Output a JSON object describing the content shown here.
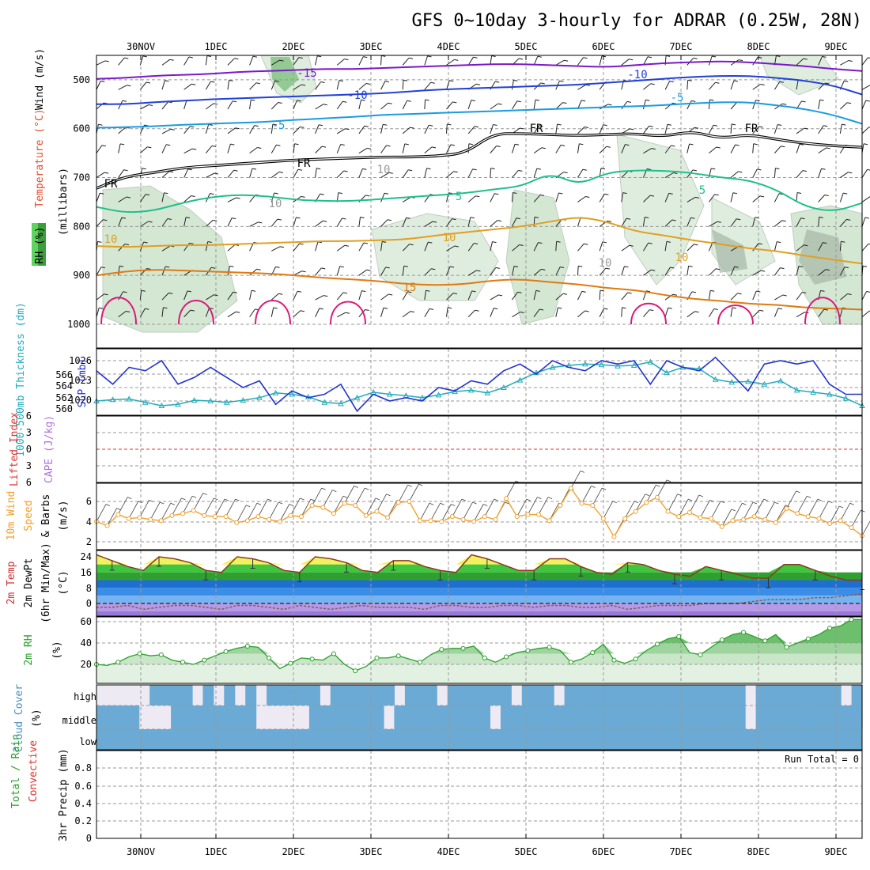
{
  "title": "GFS 0~10day 3-hourly for ADRAR (0.25W, 28N)",
  "colors": {
    "temp_m15": "#7b18c8",
    "temp_m10": "#2140d8",
    "temp_m5": "#1a9be0",
    "freezing": "#000000",
    "temp_5": "#1fbf8c",
    "temp_10": "#e0a020",
    "temp_15": "#e07a10",
    "temp_20": "#d81b7a",
    "slp": "#2233cc",
    "thickness": "#22aabb",
    "wind10m": "#f0a030",
    "temp2m_fill": "#3fc53f",
    "temp2m_warm": "#f0f060",
    "temp2m_line": "#8b3a1a",
    "dew_line": "#8a5a5a",
    "rh_line": "#2aa02a",
    "cloud": "#6aaad4",
    "cloud_clear": "#eeeaf4",
    "rh_panel_fill": "#c9e6c9"
  },
  "chart_data": [
    {
      "type": "contour",
      "panel": "upper_air",
      "xlabel": "",
      "ylabel_parts": [
        "RH (%)",
        "Temperature (°C)",
        "Wind (m/s)"
      ],
      "ylabel2": "(millibars)",
      "x_categories": [
        "30NOV",
        "1DEC",
        "2DEC",
        "3DEC",
        "4DEC",
        "5DEC",
        "6DEC",
        "7DEC",
        "8DEC",
        "9DEC"
      ],
      "ylim": [
        1000,
        450
      ],
      "yticks": [
        500,
        600,
        700,
        800,
        900,
        1000
      ],
      "contour_labels": [
        "-15",
        "-10",
        "-5",
        "-10",
        "-5",
        "FR",
        "FR",
        "FR",
        "FR",
        "5",
        "5",
        "10",
        "10",
        "10",
        "15",
        "10",
        "10",
        "10"
      ],
      "isotherms": [
        {
          "name": "-15",
          "levels": [
            498,
            496,
            492,
            490,
            488,
            484,
            482,
            480,
            478,
            478,
            476,
            474,
            472,
            470,
            468,
            468,
            470,
            472,
            474,
            470,
            466,
            464,
            462,
            464,
            468,
            472,
            478,
            482
          ]
        },
        {
          "name": "-10",
          "levels": [
            550,
            550,
            546,
            543,
            540,
            538,
            536,
            534,
            532,
            530,
            528,
            524,
            520,
            518,
            516,
            514,
            512,
            510,
            506,
            502,
            498,
            494,
            492,
            492,
            496,
            502,
            512,
            530
          ]
        },
        {
          "name": "-5",
          "levels": [
            598,
            597,
            595,
            592,
            590,
            588,
            586,
            582,
            579,
            576,
            572,
            570,
            568,
            566,
            564,
            562,
            560,
            558,
            556,
            554,
            552,
            548,
            546,
            546,
            552,
            560,
            572,
            590
          ]
        },
        {
          "name": "FR",
          "levels": [
            722,
            698,
            690,
            680,
            676,
            672,
            668,
            664,
            662,
            660,
            658,
            658,
            656,
            650,
            610,
            610,
            612,
            614,
            612,
            610,
            616,
            605,
            620,
            612,
            622,
            630,
            635,
            638
          ]
        },
        {
          "name": "5",
          "levels": [
            760,
            772,
            768,
            752,
            740,
            735,
            738,
            745,
            748,
            748,
            744,
            740,
            736,
            732,
            724,
            718,
            690,
            715,
            690,
            685,
            686,
            690,
            700,
            705,
            725,
            760,
            770,
            752
          ]
        },
        {
          "name": "10",
          "levels": [
            840,
            842,
            840,
            838,
            838,
            836,
            834,
            832,
            830,
            830,
            828,
            826,
            818,
            812,
            806,
            800,
            790,
            780,
            790,
            810,
            818,
            828,
            836,
            845,
            850,
            860,
            868,
            876
          ]
        },
        {
          "name": "15",
          "levels": [
            900,
            892,
            888,
            890,
            892,
            894,
            896,
            900,
            905,
            908,
            912,
            918,
            920,
            918,
            910,
            908,
            914,
            918,
            926,
            930,
            940,
            948,
            952,
            958,
            960,
            966,
            968,
            970
          ]
        }
      ],
      "rh_shading": "green shades (light to dark with increasing RH)"
    },
    {
      "type": "line",
      "panel": "slp_thickness",
      "ylabel_left": "1000-500mb Thickness (dm)",
      "ylabel_right": "SLP (mb)",
      "yticks_thickness": [
        "566",
        "564",
        "562",
        "560"
      ],
      "yticks_slp": [
        "1026",
        "1023",
        "1020"
      ],
      "series": [
        {
          "name": "SLP",
          "values": [
            1024.5,
            1022.5,
            1025.0,
            1024.5,
            1026.0,
            1022.5,
            1023.5,
            1025.0,
            1023.5,
            1022.0,
            1023.0,
            1019.5,
            1021.5,
            1020.5,
            1021.0,
            1022.5,
            1018.5,
            1021.0,
            1020.0,
            1020.5,
            1020.0,
            1022.0,
            1021.5,
            1023.0,
            1022.5,
            1024.5,
            1025.5,
            1024.0,
            1026.0,
            1025.0,
            1024.5,
            1026.0,
            1025.5,
            1026.0,
            1022.5,
            1026.0,
            1025.0,
            1024.5,
            1026.5,
            1024.0,
            1021.5,
            1025.5,
            1026.0,
            1025.5,
            1026.0,
            1022.5,
            1021.0,
            1021.0
          ]
        },
        {
          "name": "Thickness",
          "values": [
            560.0,
            560.2,
            560.3,
            559.8,
            559.3,
            559.5,
            560.1,
            560.0,
            559.8,
            560.1,
            560.5,
            561.2,
            561.0,
            560.6,
            559.8,
            559.6,
            560.5,
            561.3,
            561.0,
            560.8,
            560.5,
            560.9,
            561.4,
            561.6,
            561.2,
            562.0,
            563.1,
            564.2,
            565.0,
            565.3,
            565.5,
            565.4,
            565.2,
            565.3,
            565.8,
            564.2,
            565.0,
            564.8,
            563.2,
            562.8,
            562.9,
            562.5,
            563.0,
            561.6,
            561.3,
            561.0,
            560.4,
            559.3
          ]
        }
      ]
    },
    {
      "type": "line",
      "panel": "stability",
      "ylabel_left": "Lifted Index",
      "ylabel_right": "CAPE (J/kg)",
      "yticks": [
        "6",
        "3",
        "0",
        "3",
        "6"
      ],
      "values": []
    },
    {
      "type": "line",
      "panel": "wind10m",
      "ylabel_left": "10m Wind Speed & Barbs",
      "ylabel_right": "(m/s)",
      "yticks": [
        "6",
        "4",
        "2"
      ],
      "values": [
        4.0,
        3.6,
        4.7,
        4.3,
        4.4,
        4.2,
        4.1,
        4.6,
        4.8,
        5.1,
        4.6,
        4.5,
        4.5,
        3.9,
        4.1,
        4.5,
        4.2,
        4.0,
        4.6,
        4.5,
        5.6,
        5.4,
        4.8,
        5.8,
        5.6,
        4.6,
        5.0,
        4.4,
        5.9,
        6.0,
        4.1,
        4.1,
        4.0,
        4.5,
        4.2,
        4.0,
        4.5,
        4.2,
        6.3,
        4.5,
        4.7,
        4.7,
        4.1,
        5.6,
        7.3,
        5.8,
        5.6,
        4.3,
        2.5,
        4.3,
        5.0,
        5.9,
        6.4,
        5.0,
        4.5,
        4.9,
        4.4,
        4.3,
        3.5,
        4.1,
        4.2,
        4.5,
        4.2,
        3.9,
        5.3,
        4.8,
        4.5,
        4.3,
        3.8,
        4.1,
        3.4,
        2.6
      ]
    },
    {
      "type": "area",
      "panel": "temp2m",
      "ylabel_parts": [
        "2m Temp",
        "2m DewPt",
        "(6hr Min/Max)"
      ],
      "ylabel_right": "(°C)",
      "yticks": [
        "24",
        "16",
        "8",
        "0"
      ],
      "ylim": [
        -4,
        28
      ],
      "series": [
        {
          "name": "Temp",
          "values": [
            25,
            22,
            19,
            17,
            24,
            23,
            21,
            17,
            16,
            24,
            23,
            21,
            17,
            16,
            24,
            23,
            21,
            17,
            16,
            22,
            22,
            19,
            17,
            16,
            25,
            23,
            20,
            17,
            17,
            23,
            23,
            19,
            16,
            15,
            21,
            20,
            17,
            15,
            14,
            19,
            17,
            15,
            13,
            13,
            20,
            20,
            17,
            14,
            12,
            12
          ]
        },
        {
          "name": "DewPt",
          "values": [
            -2,
            -2,
            -1,
            -3,
            -2,
            -1,
            -1,
            -2,
            -3,
            -1,
            -1,
            -2,
            -3,
            -1,
            -2,
            -3,
            -2,
            -1,
            -2,
            -2,
            -2,
            -3,
            -1,
            -1,
            -2,
            -2,
            -1,
            -1,
            -2,
            -1,
            -1,
            -2,
            -2,
            -1,
            -3,
            -2,
            -1,
            -1,
            -1,
            0,
            0,
            0,
            1,
            2,
            2,
            2,
            3,
            3,
            4,
            5
          ]
        }
      ]
    },
    {
      "type": "area",
      "panel": "rh2m",
      "ylabel_left": "2m RH",
      "ylabel_right": "(%)",
      "yticks": [
        "60",
        "40",
        "20"
      ],
      "ylim": [
        0,
        65
      ],
      "values": [
        20,
        19,
        22,
        27,
        30,
        28,
        29,
        24,
        22,
        20,
        24,
        28,
        32,
        35,
        37,
        36,
        26,
        16,
        21,
        26,
        25,
        24,
        30,
        20,
        14,
        18,
        26,
        26,
        28,
        25,
        22,
        29,
        34,
        35,
        35,
        37,
        26,
        22,
        27,
        31,
        33,
        35,
        36,
        33,
        22,
        25,
        31,
        39,
        24,
        21,
        25,
        33,
        39,
        44,
        46,
        31,
        29,
        36,
        43,
        48,
        50,
        46,
        42,
        48,
        36,
        40,
        44,
        48,
        54,
        56,
        62,
        62
      ]
    },
    {
      "type": "heatmap",
      "panel": "cloud",
      "ylabel_left": "Cloud Cover",
      "ylabel_right": "(%)",
      "levels": [
        "high",
        "middle",
        "low"
      ],
      "high_mask": [
        0,
        0,
        0,
        0,
        0,
        1,
        1,
        1,
        1,
        0,
        1,
        0,
        1,
        0,
        1,
        0,
        1,
        1,
        1,
        1,
        1,
        0,
        1,
        1,
        1,
        1,
        1,
        1,
        0,
        1,
        1,
        1,
        0,
        1,
        1,
        1,
        1,
        1,
        1,
        0,
        1,
        1,
        1,
        0,
        1,
        1,
        1,
        1,
        1,
        1,
        1,
        1,
        1,
        1,
        1,
        1,
        1,
        1,
        1,
        1,
        1,
        0,
        1,
        1,
        1,
        1,
        1,
        1,
        1,
        1,
        0,
        1
      ],
      "mid_mask": [
        1,
        1,
        1,
        1,
        0,
        0,
        0,
        1,
        1,
        1,
        1,
        1,
        1,
        1,
        1,
        0,
        0,
        0,
        0,
        0,
        1,
        1,
        1,
        1,
        1,
        1,
        1,
        0,
        1,
        1,
        1,
        1,
        1,
        1,
        1,
        1,
        1,
        0,
        1,
        1,
        1,
        1,
        1,
        1,
        1,
        1,
        1,
        1,
        1,
        1,
        1,
        1,
        1,
        1,
        1,
        1,
        1,
        1,
        1,
        1,
        1,
        0,
        1,
        1,
        1,
        1,
        1,
        1,
        1,
        1,
        1,
        1
      ]
    },
    {
      "type": "bar",
      "panel": "precip",
      "ylabel_parts": [
        "Total / Rain",
        "Convective"
      ],
      "ylabel_right": "3hr Precip (mm)",
      "yticks": [
        "0.8",
        "0.6",
        "0.4",
        "0.2",
        "0"
      ],
      "ylim": [
        0,
        0.9
      ],
      "annotation": "Run Total = 0",
      "values": []
    }
  ]
}
